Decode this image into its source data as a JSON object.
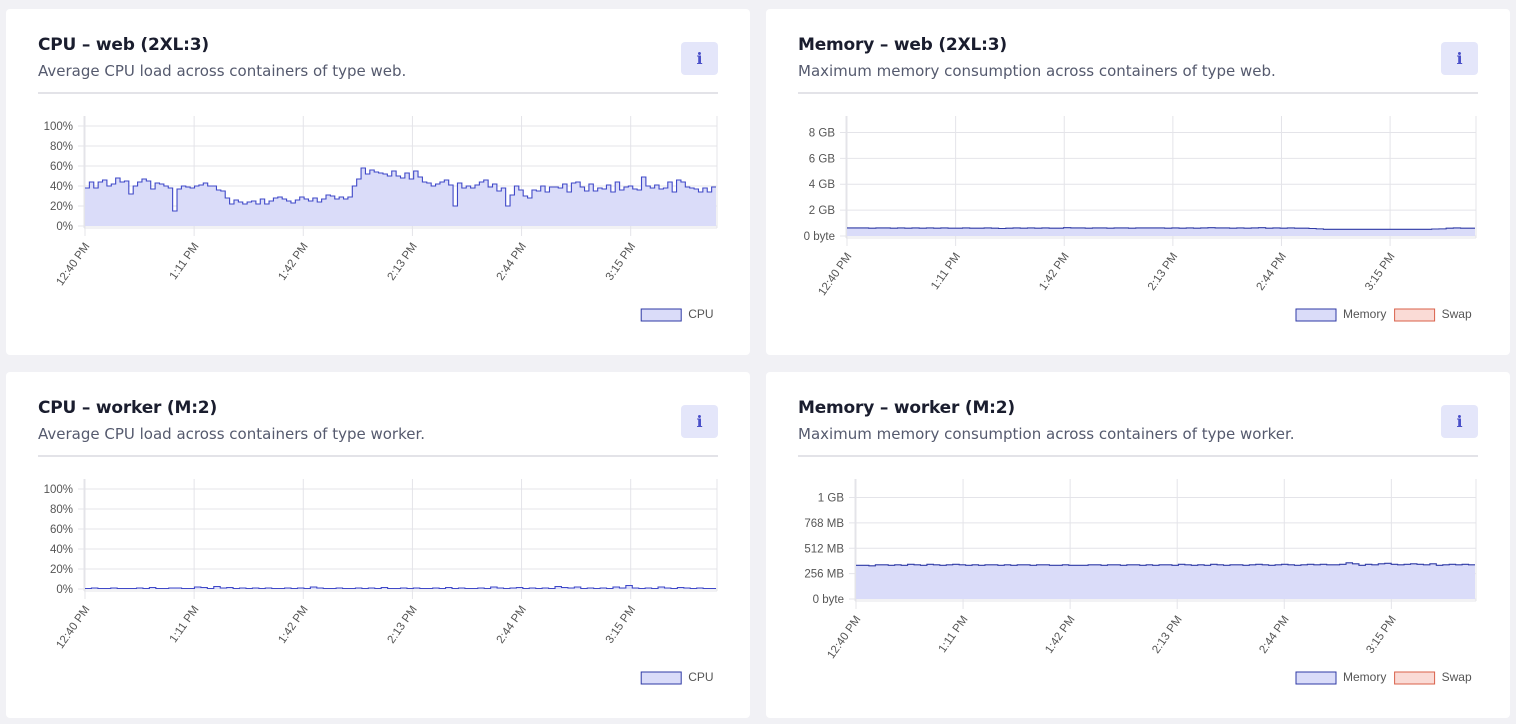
{
  "colors": {
    "cpu_fill": "#dadcf9",
    "cpu_line": "#3f48c8",
    "memory_fill": "#dadcf9",
    "memory_line": "#2f3aa5",
    "swap_fill": "#fadbd6",
    "swap_line": "#d9604a",
    "grid": "#e4e4e9",
    "axis_text": "#555555"
  },
  "cards": [
    {
      "title": "CPU – web (2XL:3)",
      "subtitle": "Average CPU load across containers of type web.",
      "info_label": "i",
      "legend": [
        "CPU"
      ]
    },
    {
      "title": "Memory – web (2XL:3)",
      "subtitle": "Maximum memory consumption across containers of type web.",
      "info_label": "i",
      "legend": [
        "Memory",
        "Swap"
      ]
    },
    {
      "title": "CPU – worker (M:2)",
      "subtitle": "Average CPU load across containers of type worker.",
      "info_label": "i",
      "legend": [
        "CPU"
      ]
    },
    {
      "title": "Memory – worker (M:2)",
      "subtitle": "Maximum memory consumption across containers of type worker.",
      "info_label": "i",
      "legend": [
        "Memory",
        "Swap"
      ]
    }
  ],
  "chart_data": [
    {
      "type": "area",
      "step": true,
      "x_start": "12:40 PM",
      "x_end": "3:34 PM",
      "xtick_labels": [
        "12:40 PM",
        "1:11 PM",
        "1:42 PM",
        "2:13 PM",
        "2:44 PM",
        "3:15 PM"
      ],
      "ytick_labels": [
        "0%",
        "20%",
        "40%",
        "60%",
        "80%",
        "100%"
      ],
      "ylim": [
        0,
        100
      ],
      "grid": true,
      "legend_position": "bottom-right",
      "series": [
        {
          "name": "CPU",
          "values": [
            38,
            44,
            38,
            44,
            46,
            40,
            42,
            48,
            44,
            45,
            32,
            40,
            44,
            47,
            45,
            37,
            43,
            42,
            40,
            38,
            15,
            37,
            40,
            39,
            38,
            40,
            41,
            43,
            40,
            40,
            36,
            35,
            28,
            22,
            26,
            24,
            22,
            24,
            25,
            22,
            27,
            22,
            25,
            28,
            29,
            27,
            25,
            23,
            26,
            29,
            27,
            25,
            28,
            24,
            27,
            31,
            30,
            27,
            29,
            27,
            29,
            40,
            47,
            58,
            52,
            56,
            54,
            53,
            52,
            50,
            55,
            50,
            48,
            53,
            47,
            55,
            49,
            44,
            43,
            40,
            42,
            44,
            46,
            41,
            20,
            43,
            38,
            40,
            38,
            41,
            44,
            46,
            39,
            42,
            35,
            38,
            20,
            31,
            40,
            36,
            30,
            28,
            36,
            35,
            40,
            34,
            39,
            39,
            38,
            42,
            34,
            43,
            44,
            39,
            35,
            42,
            35,
            38,
            37,
            41,
            34,
            44,
            36,
            39,
            40,
            37,
            36,
            49,
            40,
            38,
            41,
            37,
            38,
            44,
            34,
            46,
            44,
            39,
            38,
            37,
            34,
            38,
            34,
            39
          ]
        }
      ]
    },
    {
      "type": "area",
      "step": true,
      "x_start": "12:40 PM",
      "x_end": "3:34 PM",
      "xtick_labels": [
        "12:40 PM",
        "1:11 PM",
        "1:42 PM",
        "2:13 PM",
        "2:44 PM",
        "3:15 PM"
      ],
      "ytick_labels": [
        "0 byte",
        "2 GB",
        "4 GB",
        "6 GB",
        "8 GB"
      ],
      "ylim": [
        0,
        8.5
      ],
      "yunit": "GB",
      "grid": true,
      "legend_position": "bottom-right",
      "series": [
        {
          "name": "Memory",
          "values": [
            0.62,
            0.62,
            0.62,
            0.6,
            0.62,
            0.62,
            0.6,
            0.62,
            0.6,
            0.62,
            0.6,
            0.62,
            0.6,
            0.62,
            0.6,
            0.6,
            0.62,
            0.6,
            0.6,
            0.62,
            0.6,
            0.58,
            0.6,
            0.62,
            0.6,
            0.62,
            0.6,
            0.62,
            0.6,
            0.6,
            0.64,
            0.62,
            0.62,
            0.6,
            0.62,
            0.62,
            0.6,
            0.62,
            0.62,
            0.6,
            0.62,
            0.62,
            0.62,
            0.62,
            0.6,
            0.62,
            0.6,
            0.62,
            0.6,
            0.62,
            0.64,
            0.62,
            0.62,
            0.6,
            0.62,
            0.6,
            0.62,
            0.64,
            0.6,
            0.62,
            0.6,
            0.62,
            0.6,
            0.6,
            0.58,
            0.55,
            0.52,
            0.52,
            0.52,
            0.52,
            0.52,
            0.52,
            0.52,
            0.52,
            0.52,
            0.52,
            0.52,
            0.52,
            0.52,
            0.52,
            0.52,
            0.54,
            0.55,
            0.6,
            0.62,
            0.6,
            0.6
          ]
        },
        {
          "name": "Swap",
          "values": [
            0,
            0
          ]
        }
      ]
    },
    {
      "type": "area",
      "step": true,
      "x_start": "12:40 PM",
      "x_end": "3:34 PM",
      "xtick_labels": [
        "12:40 PM",
        "1:11 PM",
        "1:42 PM",
        "2:13 PM",
        "2:44 PM",
        "3:15 PM"
      ],
      "ytick_labels": [
        "0%",
        "20%",
        "40%",
        "60%",
        "80%",
        "100%"
      ],
      "ylim": [
        0,
        100
      ],
      "grid": true,
      "legend_position": "bottom-right",
      "series": [
        {
          "name": "CPU",
          "values": [
            0.5,
            1,
            0.5,
            0.5,
            1,
            0.5,
            0.5,
            0.5,
            1,
            0.5,
            1.5,
            0.5,
            0.5,
            1,
            1,
            0.5,
            0.5,
            2,
            1.5,
            0.5,
            2.5,
            1,
            1.5,
            0.5,
            1,
            0.5,
            1,
            0.5,
            1,
            0.5,
            0.5,
            1,
            0.5,
            1,
            0.5,
            2,
            1,
            0.5,
            0.5,
            1,
            0.5,
            0.5,
            1,
            0.5,
            1,
            0.5,
            1.5,
            0.5,
            0.5,
            1,
            0.5,
            1,
            0.5,
            0.5,
            1,
            0.5,
            1.5,
            0.5,
            1,
            0.5,
            0.5,
            1,
            0.5,
            2,
            1,
            0.5,
            1,
            1.5,
            0.5,
            1,
            0.5,
            1,
            0.5,
            2.5,
            1.5,
            1,
            2,
            0.5,
            1,
            0.5,
            1,
            0.5,
            2,
            1,
            3.5,
            1,
            0.5,
            1,
            0.5,
            2,
            1,
            0.5,
            1.5,
            1,
            0.5,
            1,
            0.5,
            0.5
          ]
        }
      ]
    },
    {
      "type": "area",
      "step": true,
      "x_start": "12:40 PM",
      "x_end": "3:34 PM",
      "xtick_labels": [
        "12:40 PM",
        "1:11 PM",
        "1:42 PM",
        "2:13 PM",
        "2:44 PM",
        "3:15 PM"
      ],
      "ytick_labels": [
        "0 byte",
        "256 MB",
        "512 MB",
        "768 MB",
        "1 GB"
      ],
      "ylim": [
        0,
        1110
      ],
      "yunit": "MB",
      "grid": true,
      "legend_position": "bottom-right",
      "series": [
        {
          "name": "Memory",
          "values": [
            340,
            340,
            335,
            345,
            345,
            340,
            345,
            340,
            350,
            345,
            340,
            350,
            345,
            340,
            345,
            350,
            345,
            340,
            345,
            340,
            345,
            345,
            340,
            345,
            340,
            345,
            345,
            340,
            345,
            345,
            340,
            340,
            345,
            340,
            340,
            340,
            345,
            345,
            340,
            345,
            345,
            340,
            345,
            345,
            340,
            345,
            340,
            345,
            345,
            340,
            350,
            345,
            340,
            345,
            340,
            350,
            345,
            340,
            345,
            345,
            340,
            345,
            350,
            345,
            340,
            345,
            350,
            345,
            340,
            345,
            350,
            345,
            350,
            345,
            345,
            350,
            365,
            355,
            340,
            350,
            345,
            355,
            360,
            350,
            345,
            350,
            355,
            350,
            345,
            355,
            340,
            345,
            350,
            345,
            350,
            345
          ]
        },
        {
          "name": "Swap",
          "values": [
            0,
            0
          ]
        }
      ]
    }
  ]
}
